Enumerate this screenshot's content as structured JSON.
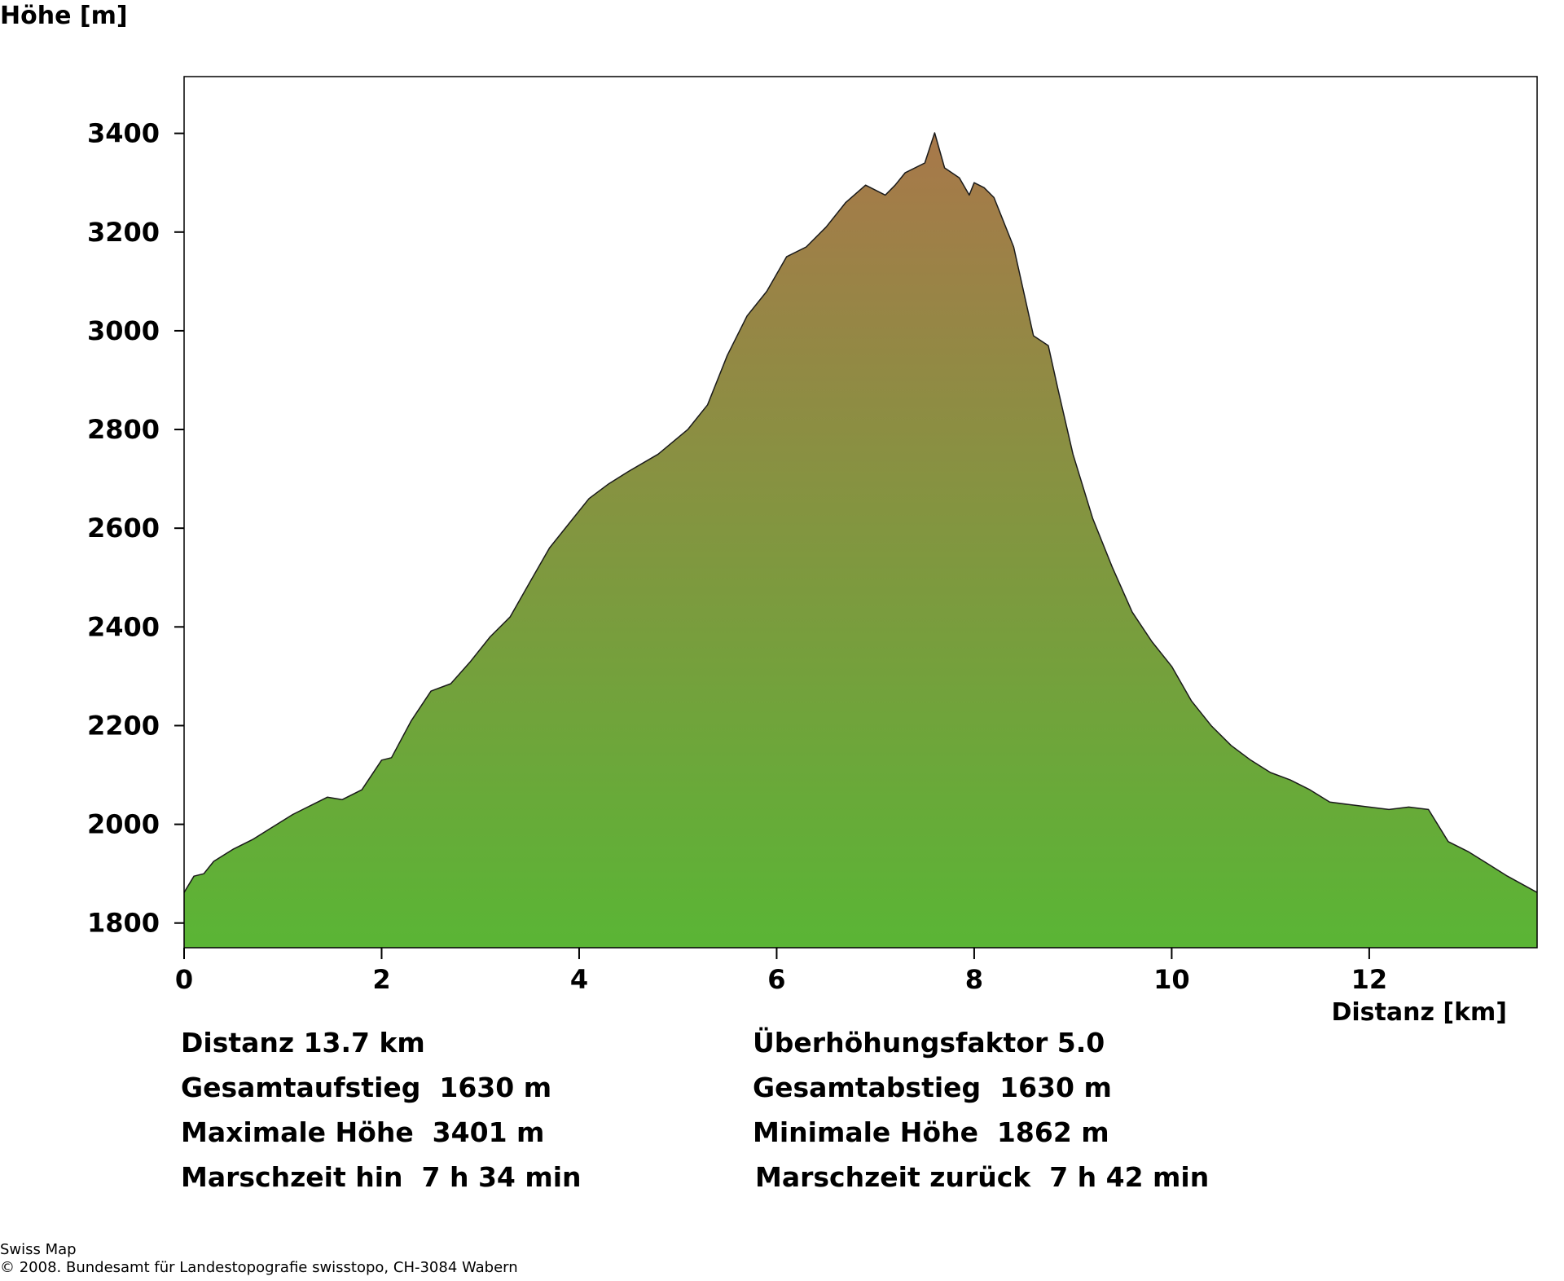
{
  "chart_data": {
    "type": "area",
    "ylabel": "Höhe [m]",
    "xlabel": "Distanz [km]",
    "xlim": [
      0,
      13.7
    ],
    "ylim": [
      1750,
      3515
    ],
    "x_ticks": [
      0,
      2,
      4,
      6,
      8,
      10,
      12
    ],
    "y_ticks": [
      1800,
      2000,
      2200,
      2400,
      2600,
      2800,
      3000,
      3200,
      3400
    ],
    "fill_gradient": {
      "top": "#a8784a",
      "bottom": "#5ab535"
    },
    "x": [
      0,
      0.1,
      0.2,
      0.3,
      0.5,
      0.7,
      0.9,
      1.1,
      1.3,
      1.45,
      1.6,
      1.8,
      2.0,
      2.1,
      2.3,
      2.5,
      2.7,
      2.9,
      3.1,
      3.3,
      3.5,
      3.7,
      3.9,
      4.1,
      4.3,
      4.5,
      4.8,
      5.1,
      5.3,
      5.5,
      5.7,
      5.9,
      6.1,
      6.3,
      6.5,
      6.7,
      6.9,
      7.1,
      7.2,
      7.3,
      7.5,
      7.6,
      7.7,
      7.85,
      7.95,
      8.0,
      8.1,
      8.2,
      8.4,
      8.6,
      8.75,
      8.85,
      9.0,
      9.2,
      9.4,
      9.6,
      9.8,
      10.0,
      10.2,
      10.4,
      10.6,
      10.8,
      11.0,
      11.2,
      11.4,
      11.6,
      11.8,
      12.0,
      12.2,
      12.4,
      12.6,
      12.8,
      13.0,
      13.2,
      13.4,
      13.7
    ],
    "y": [
      1862,
      1895,
      1900,
      1925,
      1950,
      1970,
      1995,
      2020,
      2040,
      2055,
      2050,
      2070,
      2130,
      2135,
      2210,
      2270,
      2285,
      2330,
      2380,
      2420,
      2490,
      2560,
      2610,
      2660,
      2690,
      2715,
      2750,
      2800,
      2850,
      2950,
      3030,
      3080,
      3150,
      3170,
      3210,
      3260,
      3295,
      3275,
      3295,
      3320,
      3340,
      3401,
      3330,
      3310,
      3275,
      3300,
      3290,
      3270,
      3170,
      2990,
      2970,
      2880,
      2750,
      2620,
      2520,
      2430,
      2370,
      2320,
      2250,
      2200,
      2160,
      2130,
      2105,
      2090,
      2070,
      2045,
      2040,
      2035,
      2030,
      2035,
      2030,
      1965,
      1945,
      1920,
      1895,
      1862
    ]
  },
  "stats": {
    "distance": "Distanz 13.7 km",
    "exaggeration": "Überhöhungsfaktor 5.0",
    "ascent": "Gesamtaufstieg  1630 m",
    "descent": "Gesamtabstieg  1630 m",
    "max_height": "Maximale Höhe  3401 m",
    "min_height": "Minimale Höhe  1862 m",
    "time_there": "Marschzeit hin  7 h 34 min",
    "time_back": "Marschzeit zurück  7 h 42 min"
  },
  "credit": {
    "line1": "Swiss Map",
    "line2": "© 2008. Bundesamt für Landestopografie swisstopo, CH-3084 Wabern"
  }
}
